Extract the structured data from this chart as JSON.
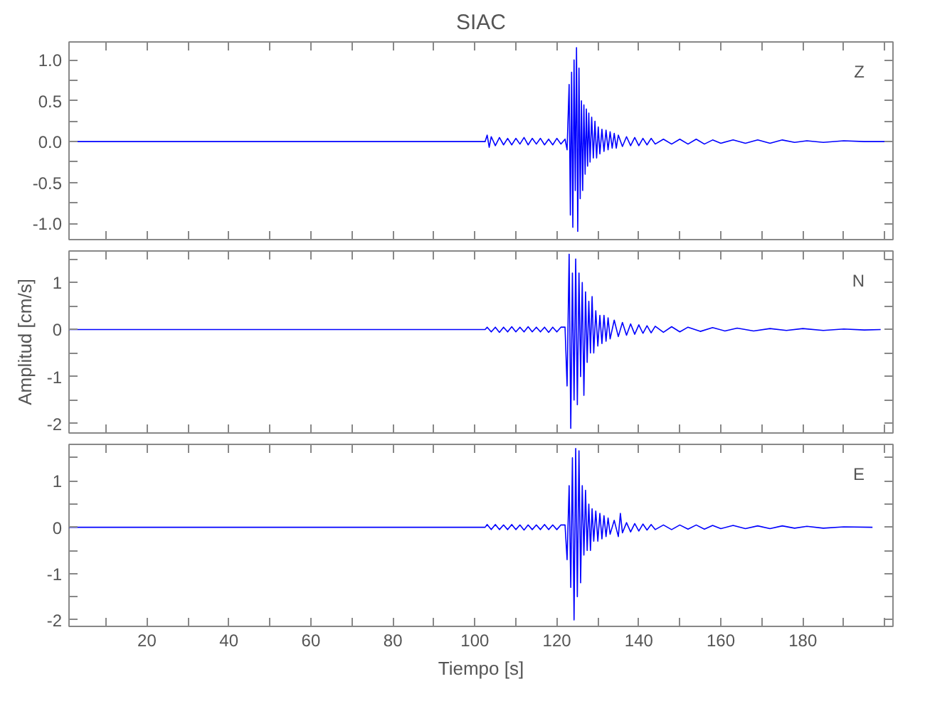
{
  "chart_data": [
    {
      "type": "line",
      "title": "SIAC",
      "tick_labels": "y",
      "grid": false,
      "xlim": [
        1,
        202
      ],
      "ylim": [
        -1.2,
        1.22
      ],
      "xticks": [
        {
          "value": 10,
          "label": null
        },
        {
          "value": 20,
          "label": null
        },
        {
          "value": 30,
          "label": null
        },
        {
          "value": 40,
          "label": null
        },
        {
          "value": 50,
          "label": null
        },
        {
          "value": 60,
          "label": null
        },
        {
          "value": 70,
          "label": null
        },
        {
          "value": 80,
          "label": null
        },
        {
          "value": 90,
          "label": null
        },
        {
          "value": 100,
          "label": null
        },
        {
          "value": 110,
          "label": null
        },
        {
          "value": 120,
          "label": null
        },
        {
          "value": 130,
          "label": null
        },
        {
          "value": 140,
          "label": null
        },
        {
          "value": 150,
          "label": null
        },
        {
          "value": 160,
          "label": null
        },
        {
          "value": 170,
          "label": null
        },
        {
          "value": 180,
          "label": null
        },
        {
          "value": 190,
          "label": null
        },
        {
          "value": 200,
          "label": null
        }
      ],
      "yticks": [
        {
          "value": -1,
          "label": "-1.0"
        },
        {
          "value": -0.75,
          "label": null
        },
        {
          "value": -0.5,
          "label": "-0.5"
        },
        {
          "value": -0.25,
          "label": null
        },
        {
          "value": 0,
          "label": "0.0"
        },
        {
          "value": 0.25,
          "label": null
        },
        {
          "value": 0.5,
          "label": "0.5"
        },
        {
          "value": 0.75,
          "label": null
        },
        {
          "value": 1,
          "label": "1.0"
        }
      ],
      "series": [
        {
          "name": "Z",
          "color": "#0000ff",
          "x": [
            1,
            102.5,
            103,
            103.5,
            104,
            105,
            106,
            107,
            108,
            109,
            110,
            111,
            112,
            113,
            114,
            115,
            116,
            117,
            118,
            119,
            120,
            121,
            122,
            122.5,
            123,
            123.3,
            123.6,
            123.9,
            124.2,
            124.5,
            124.8,
            125.1,
            125.4,
            125.7,
            126,
            126.3,
            126.6,
            126.9,
            127.2,
            127.5,
            127.8,
            128.1,
            128.5,
            128.9,
            129.3,
            129.7,
            130.1,
            130.5,
            131,
            131.5,
            132,
            132.5,
            133,
            133.5,
            134,
            134.5,
            135,
            136,
            137,
            138,
            139,
            140,
            141,
            142,
            143,
            144,
            146,
            148,
            150,
            152,
            154,
            156,
            158,
            160,
            163,
            166,
            169,
            172,
            175,
            178,
            181,
            185,
            190,
            195,
            202
          ],
          "values": [
            0,
            0,
            0.08,
            -0.07,
            0.06,
            -0.05,
            0.05,
            -0.04,
            0.04,
            -0.04,
            0.04,
            -0.03,
            0.05,
            -0.04,
            0.04,
            -0.03,
            0.04,
            -0.04,
            0.03,
            -0.04,
            0.04,
            -0.03,
            0.03,
            -0.1,
            0.7,
            -0.9,
            0.85,
            -1.05,
            1.0,
            -0.6,
            1.15,
            -1.1,
            0.9,
            -0.7,
            0.5,
            -0.6,
            0.45,
            -0.4,
            0.4,
            -0.3,
            0.35,
            -0.25,
            0.3,
            -0.2,
            0.25,
            -0.2,
            0.18,
            -0.15,
            0.15,
            -0.12,
            0.14,
            -0.1,
            0.12,
            -0.08,
            0.1,
            -0.08,
            0.08,
            -0.06,
            0.06,
            -0.05,
            0.05,
            -0.05,
            0.04,
            -0.04,
            0.04,
            -0.03,
            0.03,
            -0.03,
            0.03,
            -0.03,
            0.03,
            -0.03,
            0.02,
            -0.02,
            0.02,
            -0.02,
            0.02,
            -0.02,
            0.02,
            -0.01,
            0.01,
            -0.01,
            0.01,
            0,
            0
          ]
        }
      ]
    },
    {
      "type": "line",
      "ylabel": "Amplitud [cm/s]",
      "tick_labels": "y",
      "grid": false,
      "xlim": [
        1,
        202
      ],
      "ylim": [
        -2.2,
        1.67
      ],
      "xticks": [
        {
          "value": 10,
          "label": null
        },
        {
          "value": 20,
          "label": null
        },
        {
          "value": 30,
          "label": null
        },
        {
          "value": 40,
          "label": null
        },
        {
          "value": 50,
          "label": null
        },
        {
          "value": 60,
          "label": null
        },
        {
          "value": 70,
          "label": null
        },
        {
          "value": 80,
          "label": null
        },
        {
          "value": 90,
          "label": null
        },
        {
          "value": 100,
          "label": null
        },
        {
          "value": 110,
          "label": null
        },
        {
          "value": 120,
          "label": null
        },
        {
          "value": 130,
          "label": null
        },
        {
          "value": 140,
          "label": null
        },
        {
          "value": 150,
          "label": null
        },
        {
          "value": 160,
          "label": null
        },
        {
          "value": 170,
          "label": null
        },
        {
          "value": 180,
          "label": null
        },
        {
          "value": 190,
          "label": null
        },
        {
          "value": 200,
          "label": null
        }
      ],
      "yticks": [
        {
          "value": -2,
          "label": "-2"
        },
        {
          "value": -1.5,
          "label": null
        },
        {
          "value": -1,
          "label": "-1"
        },
        {
          "value": -0.5,
          "label": null
        },
        0,
        {
          "value": 0.5,
          "label": null
        },
        1,
        {
          "value": 1.5,
          "label": null
        }
      ],
      "series": [
        {
          "name": "N",
          "color": "#0000ff",
          "x": [
            1,
            102.5,
            103,
            104,
            105,
            106,
            107,
            108,
            109,
            110,
            111,
            112,
            113,
            114,
            115,
            116,
            117,
            118,
            119,
            120,
            121,
            122,
            122.5,
            123,
            123.4,
            123.8,
            124.2,
            124.6,
            125,
            125.4,
            125.8,
            126.2,
            126.6,
            127,
            127.4,
            127.8,
            128.2,
            128.6,
            129,
            129.5,
            130,
            130.5,
            131,
            131.5,
            132,
            132.5,
            133,
            134,
            135,
            136,
            137,
            138,
            139,
            140,
            141,
            142,
            143,
            144,
            146,
            148,
            150,
            152,
            155,
            158,
            161,
            164,
            168,
            172,
            176,
            180,
            185,
            190,
            195,
            199
          ],
          "values": [
            0,
            0,
            0.05,
            -0.05,
            0.05,
            -0.06,
            0.05,
            -0.05,
            0.06,
            -0.05,
            0.05,
            -0.05,
            0.06,
            -0.05,
            0.05,
            -0.05,
            0.05,
            -0.06,
            0.05,
            -0.05,
            0.05,
            0.05,
            -1.2,
            1.6,
            -2.1,
            1.2,
            -1.5,
            1.5,
            -1.6,
            1.2,
            -1.0,
            1.0,
            -1.4,
            0.8,
            -0.7,
            0.6,
            -0.5,
            0.7,
            -0.5,
            0.4,
            -0.35,
            0.3,
            -0.3,
            0.3,
            -0.25,
            0.25,
            -0.2,
            0.2,
            -0.15,
            0.15,
            -0.12,
            0.12,
            -0.1,
            0.1,
            -0.08,
            0.08,
            -0.07,
            0.07,
            -0.06,
            0.06,
            -0.05,
            0.05,
            -0.04,
            0.04,
            -0.03,
            0.03,
            -0.03,
            0.02,
            -0.02,
            0.02,
            -0.02,
            0.01,
            -0.01,
            0
          ]
        }
      ]
    },
    {
      "type": "line",
      "xlabel": "Tiempo [s]",
      "grid": false,
      "xlim": [
        1,
        202
      ],
      "ylim": [
        -2.14,
        1.79
      ],
      "xticks": [
        {
          "value": 10,
          "label": null
        },
        20,
        {
          "value": 30,
          "label": null
        },
        40,
        {
          "value": 50,
          "label": null
        },
        60,
        {
          "value": 70,
          "label": null
        },
        80,
        {
          "value": 90,
          "label": null
        },
        100,
        {
          "value": 110,
          "label": null
        },
        120,
        {
          "value": 130,
          "label": null
        },
        140,
        {
          "value": 150,
          "label": null
        },
        160,
        {
          "value": 170,
          "label": null
        },
        180,
        {
          "value": 190,
          "label": null
        },
        {
          "value": 200,
          "label": null
        }
      ],
      "yticks": [
        {
          "value": -2,
          "label": "-2"
        },
        {
          "value": -1.5,
          "label": null
        },
        {
          "value": -1,
          "label": "-1"
        },
        {
          "value": -0.5,
          "label": null
        },
        0,
        {
          "value": 0.5,
          "label": null
        },
        1,
        {
          "value": 1.5,
          "label": null
        }
      ],
      "series": [
        {
          "name": "E",
          "color": "#0000ff",
          "x": [
            1,
            102.5,
            103,
            104,
            105,
            106,
            107,
            108,
            109,
            110,
            111,
            112,
            113,
            114,
            115,
            116,
            117,
            118,
            119,
            120,
            121,
            122,
            122.5,
            123,
            123.4,
            123.8,
            124.2,
            124.6,
            125,
            125.4,
            125.8,
            126.2,
            126.6,
            127,
            127.4,
            127.8,
            128.2,
            128.6,
            129,
            129.5,
            130,
            130.5,
            131,
            131.5,
            132,
            132.5,
            133,
            134,
            135,
            135.5,
            136,
            137,
            138,
            139,
            140,
            141,
            142,
            143,
            144,
            146,
            148,
            150,
            152,
            154,
            156,
            158,
            160,
            163,
            166,
            169,
            172,
            175,
            178,
            181,
            185,
            190,
            197
          ],
          "values": [
            0,
            0,
            0.06,
            -0.05,
            0.06,
            -0.05,
            0.05,
            -0.05,
            0.06,
            -0.05,
            0.05,
            -0.06,
            0.05,
            -0.05,
            0.05,
            -0.05,
            0.06,
            -0.05,
            0.05,
            -0.05,
            0.05,
            0.05,
            -0.7,
            0.9,
            -1.3,
            1.5,
            -2.0,
            1.7,
            -1.5,
            1.65,
            -1.2,
            0.9,
            -0.6,
            0.8,
            -0.5,
            0.5,
            -0.5,
            0.4,
            -0.3,
            0.35,
            -0.3,
            0.3,
            -0.25,
            0.25,
            -0.2,
            0.2,
            -0.15,
            0.15,
            -0.2,
            0.3,
            -0.12,
            0.1,
            -0.1,
            0.08,
            -0.08,
            0.07,
            -0.06,
            0.06,
            -0.05,
            0.05,
            -0.05,
            0.05,
            -0.04,
            0.05,
            -0.04,
            0.04,
            -0.03,
            0.04,
            -0.03,
            0.03,
            -0.03,
            0.03,
            -0.02,
            0.02,
            -0.02,
            0.01,
            0
          ]
        }
      ]
    }
  ]
}
